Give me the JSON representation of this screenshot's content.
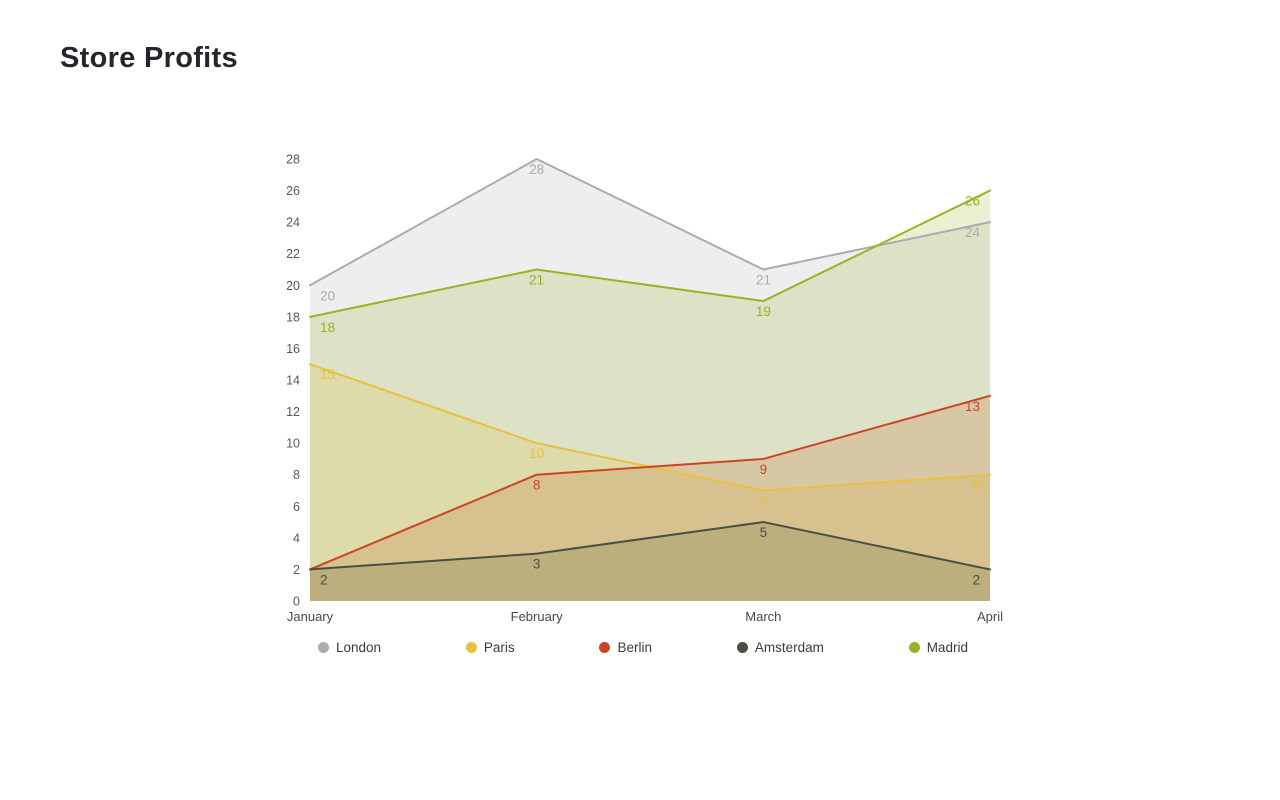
{
  "title": "Store Profits",
  "chart_data": {
    "type": "area",
    "title": "Store Profits",
    "categories": [
      "January",
      "February",
      "March",
      "April"
    ],
    "series": [
      {
        "name": "London",
        "color": "#acacb0",
        "values": [
          20,
          28,
          21,
          24
        ]
      },
      {
        "name": "Paris",
        "color": "#e9c13d",
        "values": [
          15,
          10,
          7,
          8
        ]
      },
      {
        "name": "Berlin",
        "color": "#cc4522",
        "values": [
          2,
          8,
          9,
          13
        ]
      },
      {
        "name": "Amsterdam",
        "color": "#485045",
        "values": [
          2,
          3,
          5,
          2
        ]
      },
      {
        "name": "Madrid",
        "color": "#9ab224",
        "values": [
          18,
          21,
          19,
          26
        ]
      }
    ],
    "ylim": [
      0,
      28
    ],
    "ytick_step": 2,
    "grid": false,
    "legend_position": "bottom",
    "fill_opacity": 0.2,
    "data_labels": true,
    "axis_text_color": "#55585b"
  }
}
